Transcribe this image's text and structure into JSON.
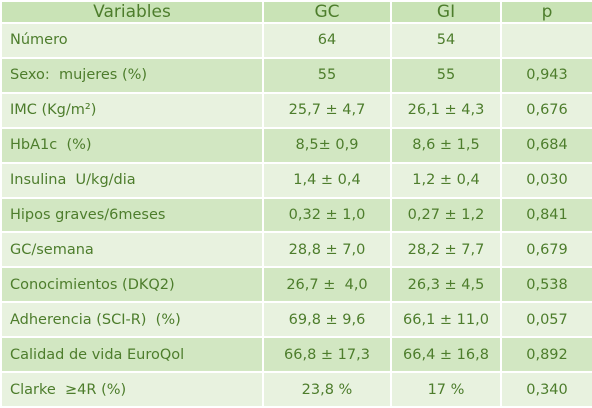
{
  "table": {
    "header": [
      "Variables",
      "GC",
      "GI",
      "p"
    ],
    "rows": [
      [
        "Número",
        "64",
        "54"
      ],
      [
        "Sexo:  mujeres (%)",
        "55",
        "55",
        "0,943"
      ],
      [
        "IMC (Kg/m²)",
        "25,7 ± 4,7",
        "26,1 ± 4,3",
        "0,676"
      ],
      [
        "HbA1c  (%)",
        "8,5± 0,9",
        "8,6 ± 1,5",
        "0,684"
      ],
      [
        "Insulina  U/kg/dia",
        "1,4 ± 0,4",
        "1,2 ± 0,4",
        "0,030"
      ],
      [
        "Hipos graves/6meses",
        "0,32 ± 1,0",
        "0,27 ± 1,2",
        "0,841"
      ],
      [
        "GC/semana",
        "28,8 ± 7,0",
        "28,2 ± 7,7",
        "0,679"
      ],
      [
        "Conocimientos (DKQ2)",
        "26,7 ±  4,0",
        "26,3 ± 4,5",
        "0,538"
      ],
      [
        "Adherencia (SCI-R)  (%)",
        "69,8 ± 9,6",
        "66,1 ± 11,0",
        "0,057"
      ],
      [
        "Calidad de vida EuroQol",
        "66,8 ± 17,3",
        "66,4 ± 16,8",
        "0,892"
      ],
      [
        "Clarke  ≥4R (%)",
        "23,8 %",
        "17 %",
        "0,340"
      ]
    ]
  }
}
